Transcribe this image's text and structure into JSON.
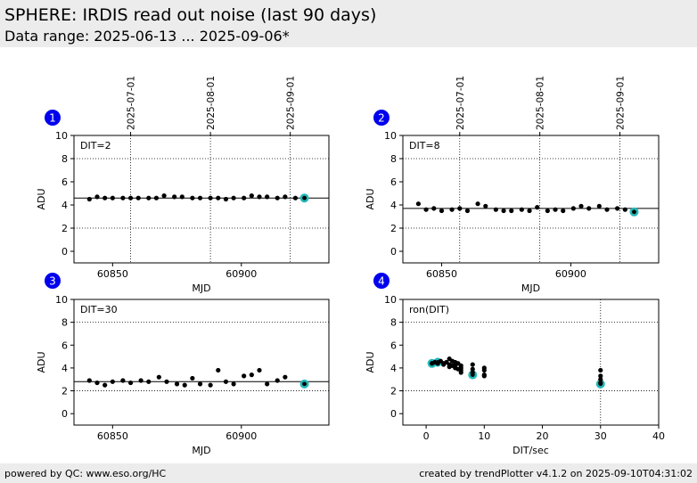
{
  "header": {
    "title": "SPHERE: IRDIS read out noise (last 90 days)",
    "subtitle": "Data range: 2025-06-13 ... 2025-09-06*"
  },
  "footer": {
    "left": "powered by QC: www.eso.org/HC",
    "right": "created by trendPlotter v4.1.2 on 2025-09-10T04:31:02"
  },
  "colors": {
    "badge": "#0000ee",
    "highlight": "#22b8b8",
    "points": "#000000"
  },
  "chart_data": [
    {
      "type": "scatter",
      "panel": "1",
      "label": "DIT=2",
      "xlabel": "MJD",
      "ylabel": "ADU",
      "xlim": [
        60835,
        60934
      ],
      "ylim": [
        -1,
        10
      ],
      "xticks": [
        60850,
        60900
      ],
      "yticks": [
        0,
        2,
        4,
        6,
        8,
        10
      ],
      "date_ticks": [
        {
          "mjd": 60857,
          "label": "2025-07-01"
        },
        {
          "mjd": 60888,
          "label": "2025-08-01"
        },
        {
          "mjd": 60919,
          "label": "2025-09-01"
        }
      ],
      "reference_line": 4.6,
      "x": [
        60841,
        60844,
        60847,
        60850,
        60854,
        60857,
        60860,
        60864,
        60867,
        60870,
        60874,
        60877,
        60881,
        60884,
        60888,
        60891,
        60894,
        60897,
        60901,
        60904,
        60907,
        60910,
        60914,
        60917,
        60921
      ],
      "y": [
        4.5,
        4.7,
        4.6,
        4.6,
        4.6,
        4.6,
        4.6,
        4.6,
        4.6,
        4.8,
        4.7,
        4.7,
        4.6,
        4.6,
        4.6,
        4.6,
        4.5,
        4.6,
        4.6,
        4.8,
        4.7,
        4.7,
        4.6,
        4.7,
        4.6
      ],
      "highlight": {
        "x": 60924.5,
        "y": 4.6
      }
    },
    {
      "type": "scatter",
      "panel": "2",
      "label": "DIT=8",
      "xlabel": "MJD",
      "ylabel": "ADU",
      "xlim": [
        60835,
        60934
      ],
      "ylim": [
        -1,
        10
      ],
      "xticks": [
        60850,
        60900
      ],
      "yticks": [
        0,
        2,
        4,
        6,
        8,
        10
      ],
      "date_ticks": [
        {
          "mjd": 60857,
          "label": "2025-07-01"
        },
        {
          "mjd": 60888,
          "label": "2025-08-01"
        },
        {
          "mjd": 60919,
          "label": "2025-09-01"
        }
      ],
      "reference_line": 3.7,
      "x": [
        60841,
        60844,
        60847,
        60850,
        60854,
        60857,
        60860,
        60864,
        60867,
        60871,
        60874,
        60877,
        60881,
        60884,
        60887,
        60891,
        60894,
        60897,
        60901,
        60904,
        60907,
        60911,
        60914,
        60918,
        60921
      ],
      "y": [
        4.1,
        3.6,
        3.7,
        3.5,
        3.6,
        3.7,
        3.5,
        4.1,
        3.9,
        3.6,
        3.5,
        3.5,
        3.6,
        3.5,
        3.8,
        3.5,
        3.6,
        3.5,
        3.7,
        3.9,
        3.7,
        3.9,
        3.6,
        3.7,
        3.6
      ],
      "highlight": {
        "x": 60924.5,
        "y": 3.4
      }
    },
    {
      "type": "scatter",
      "panel": "3",
      "label": "DIT=30",
      "xlabel": "MJD",
      "ylabel": "ADU",
      "xlim": [
        60835,
        60934
      ],
      "ylim": [
        -1,
        10
      ],
      "xticks": [
        60850,
        60900
      ],
      "yticks": [
        0,
        2,
        4,
        6,
        8,
        10
      ],
      "date_ticks": [],
      "reference_line": 2.8,
      "x": [
        60841,
        60844,
        60847,
        60850,
        60854,
        60857,
        60861,
        60864,
        60868,
        60871,
        60875,
        60878,
        60881,
        60884,
        60888,
        60891,
        60894,
        60897,
        60901,
        60904,
        60907,
        60910,
        60914,
        60917
      ],
      "y": [
        2.9,
        2.7,
        2.5,
        2.8,
        2.9,
        2.7,
        2.9,
        2.8,
        3.2,
        2.8,
        2.6,
        2.5,
        3.1,
        2.6,
        2.5,
        3.8,
        2.8,
        2.6,
        3.3,
        3.4,
        3.8,
        2.6,
        2.9,
        3.2
      ],
      "highlight": {
        "x": 60924.5,
        "y": 2.6
      }
    },
    {
      "type": "scatter",
      "panel": "4",
      "label": "ron(DIT)",
      "xlabel": "DIT/sec",
      "ylabel": "ADU",
      "xlim": [
        -4,
        40
      ],
      "ylim": [
        -1,
        10
      ],
      "xticks": [
        0,
        10,
        20,
        30,
        40
      ],
      "yticks": [
        0,
        2,
        4,
        6,
        8,
        10
      ],
      "x": [
        1,
        1.5,
        2,
        2.5,
        3,
        3,
        3.5,
        4,
        4,
        4,
        4.5,
        4.5,
        5,
        5,
        5,
        5.5,
        5.5,
        6,
        6,
        6,
        6,
        8,
        8,
        8,
        10,
        10,
        10,
        10,
        30,
        30,
        30,
        30
      ],
      "y": [
        4.4,
        4.5,
        4.4,
        4.6,
        4.4,
        4.3,
        4.5,
        4.8,
        4.3,
        4.1,
        4.6,
        4.2,
        4.5,
        4.2,
        4.0,
        4.4,
        3.9,
        4.0,
        3.8,
        3.6,
        4.2,
        3.6,
        3.9,
        4.3,
        3.4,
        3.8,
        3.3,
        4.0,
        3.8,
        3.3,
        3.0,
        2.7
      ],
      "highlight_points": [
        {
          "x": 1,
          "y": 4.4
        },
        {
          "x": 2,
          "y": 4.5
        },
        {
          "x": 8,
          "y": 3.4
        },
        {
          "x": 30,
          "y": 2.6
        }
      ]
    }
  ]
}
